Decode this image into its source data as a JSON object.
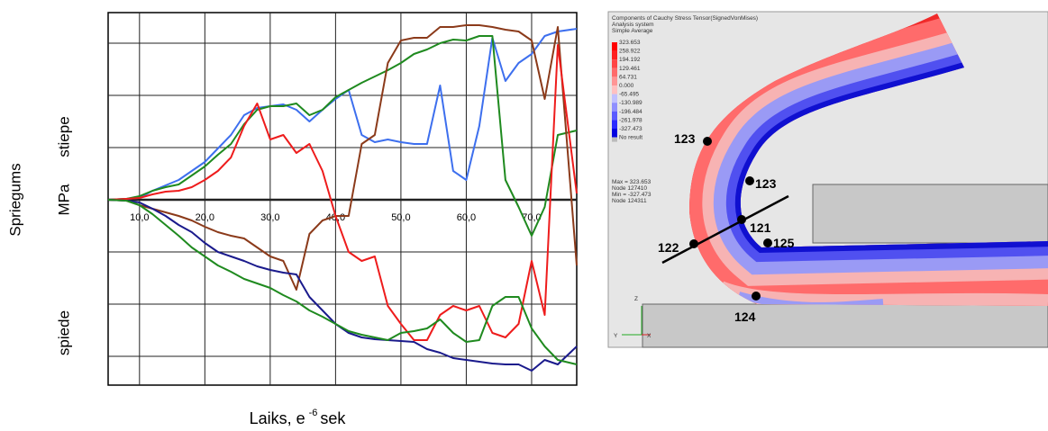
{
  "chart_data": {
    "type": "line",
    "xlabel": {
      "text": "Laiks, e",
      "superscript": "-6",
      "unit": "sek"
    },
    "ylabel": "Spriegums",
    "ylabel_unit": "MPa",
    "upper_label": "stiepe",
    "lower_label": "spiede",
    "xlim": [
      5.2,
      76.9
    ],
    "ylim": [
      -206,
      208
    ],
    "xticks": [
      {
        "value": 10,
        "label": "10,0"
      },
      {
        "value": 20,
        "label": "20,0"
      },
      {
        "value": 30,
        "label": "30,0"
      },
      {
        "value": 40,
        "label": "40,0"
      },
      {
        "value": 50,
        "label": "50,0"
      },
      {
        "value": 60,
        "label": "60,0"
      },
      {
        "value": 70,
        "label": "70,0"
      }
    ],
    "yticks": [
      -174,
      -116,
      -58,
      0,
      58,
      116,
      174
    ],
    "grid": true,
    "x": [
      5.2,
      8,
      10,
      12,
      14,
      16,
      18,
      20,
      22,
      24,
      26,
      28,
      30,
      32,
      34,
      36,
      38,
      40,
      42,
      44,
      46,
      48,
      50,
      52,
      54,
      56,
      58,
      60,
      62,
      64,
      66,
      68,
      70,
      72,
      74,
      76.9
    ],
    "series": [
      {
        "color": "#3d6fee",
        "values": [
          0,
          1,
          2,
          10,
          16,
          22,
          32,
          42,
          57,
          72,
          94,
          102,
          104,
          106,
          100,
          87,
          100,
          112,
          122,
          72,
          64,
          67,
          64,
          62,
          62,
          127,
          32,
          22,
          82,
          180,
          132,
          152,
          162,
          182,
          187,
          190
        ]
      },
      {
        "color": "#1f8a1f",
        "values": [
          0,
          1,
          4,
          10,
          14,
          17,
          27,
          37,
          50,
          62,
          84,
          100,
          104,
          104,
          107,
          94,
          100,
          114,
          122,
          130,
          137,
          144,
          152,
          162,
          167,
          174,
          178,
          177,
          182,
          182,
          22,
          -8,
          -40,
          -8,
          72,
          77
        ]
      },
      {
        "color": "#8b3a1a",
        "values": [
          0,
          -1,
          -6,
          -10,
          -14,
          -18,
          -23,
          -30,
          -36,
          -40,
          -43,
          -53,
          -63,
          -68,
          -100,
          -38,
          -23,
          -18,
          -18,
          62,
          72,
          152,
          177,
          180,
          180,
          192,
          192,
          194,
          194,
          192,
          189,
          187,
          177,
          112,
          192,
          -73
        ]
      },
      {
        "color": "#ee1c1c",
        "values": [
          0,
          1,
          2,
          6,
          9,
          10,
          14,
          22,
          32,
          47,
          82,
          107,
          67,
          72,
          52,
          62,
          32,
          -18,
          -58,
          -68,
          -63,
          -118,
          -138,
          -156,
          -156,
          -128,
          -118,
          -123,
          -118,
          -148,
          -153,
          -138,
          -68,
          -128,
          172,
          7
        ]
      },
      {
        "color": "#1a1a8c",
        "values": [
          0,
          -1,
          -3,
          -10,
          -18,
          -28,
          -36,
          -48,
          -58,
          -63,
          -68,
          -74,
          -78,
          -81,
          -83,
          -108,
          -123,
          -138,
          -148,
          -153,
          -155,
          -156,
          -157,
          -158,
          -166,
          -170,
          -176,
          -178,
          -180,
          -182,
          -183,
          -183,
          -190,
          -178,
          -183,
          -163
        ]
      },
      {
        "color": "#1f8a1f",
        "values": [
          0,
          -1,
          -6,
          -16,
          -28,
          -40,
          -53,
          -63,
          -73,
          -80,
          -88,
          -93,
          -98,
          -106,
          -113,
          -123,
          -130,
          -138,
          -146,
          -150,
          -153,
          -156,
          -148,
          -146,
          -143,
          -133,
          -148,
          -158,
          -156,
          -118,
          -108,
          -108,
          -143,
          -163,
          -178,
          -183
        ]
      }
    ]
  },
  "fea_panel": {
    "header": [
      "Components of Cauchy Stress Tensor(SignedVonMises)",
      "Analysis system",
      "Simple Average"
    ],
    "legend_values": [
      "323.653",
      "258.922",
      "194.192",
      "129.461",
      "64.731",
      "0.000",
      "-65.495",
      "-130.989",
      "-196.484",
      "-261.978",
      "-327.473"
    ],
    "no_result": "No result",
    "extremes": [
      "Max = 323.653",
      "Node 127410",
      "Min = -327.473",
      "Node 124311"
    ],
    "node_labels": [
      "123",
      "123",
      "121",
      "122",
      "125",
      "124"
    ],
    "triad": [
      "Z",
      "Y",
      "X"
    ]
  }
}
